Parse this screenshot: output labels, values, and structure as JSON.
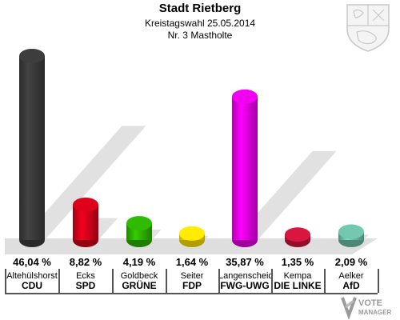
{
  "header": {
    "title": "Stadt Rietberg",
    "subtitle": "Kreistagswahl 25.05.2014",
    "district": "Nr. 3 Mastholte"
  },
  "logo": {
    "text_line1": "VOTE",
    "text_line2": "MANAGER"
  },
  "chart_data": {
    "type": "bar",
    "categories": [
      "CDU",
      "SPD",
      "GRÜNE",
      "FDP",
      "FWG-UWG",
      "DIE LINKE",
      "AfD"
    ],
    "candidates": [
      "Altehülshorst",
      "Ecks",
      "Goldbeck",
      "Seiter",
      "Langenscheidt",
      "Kempa",
      "Aelker"
    ],
    "values": [
      46.04,
      8.82,
      4.19,
      1.64,
      35.87,
      1.35,
      2.09
    ],
    "value_labels": [
      "46,04 %",
      "8,82 %",
      "4,19 %",
      "1,64 %",
      "35,87 %",
      "1,35 %",
      "2,09 %"
    ],
    "colors": [
      "#3a3a3a",
      "#d4001a",
      "#2db300",
      "#ffe100",
      "#e600e6",
      "#d0143c",
      "#6dbfa7"
    ],
    "ylim": [
      0,
      46.04
    ]
  }
}
